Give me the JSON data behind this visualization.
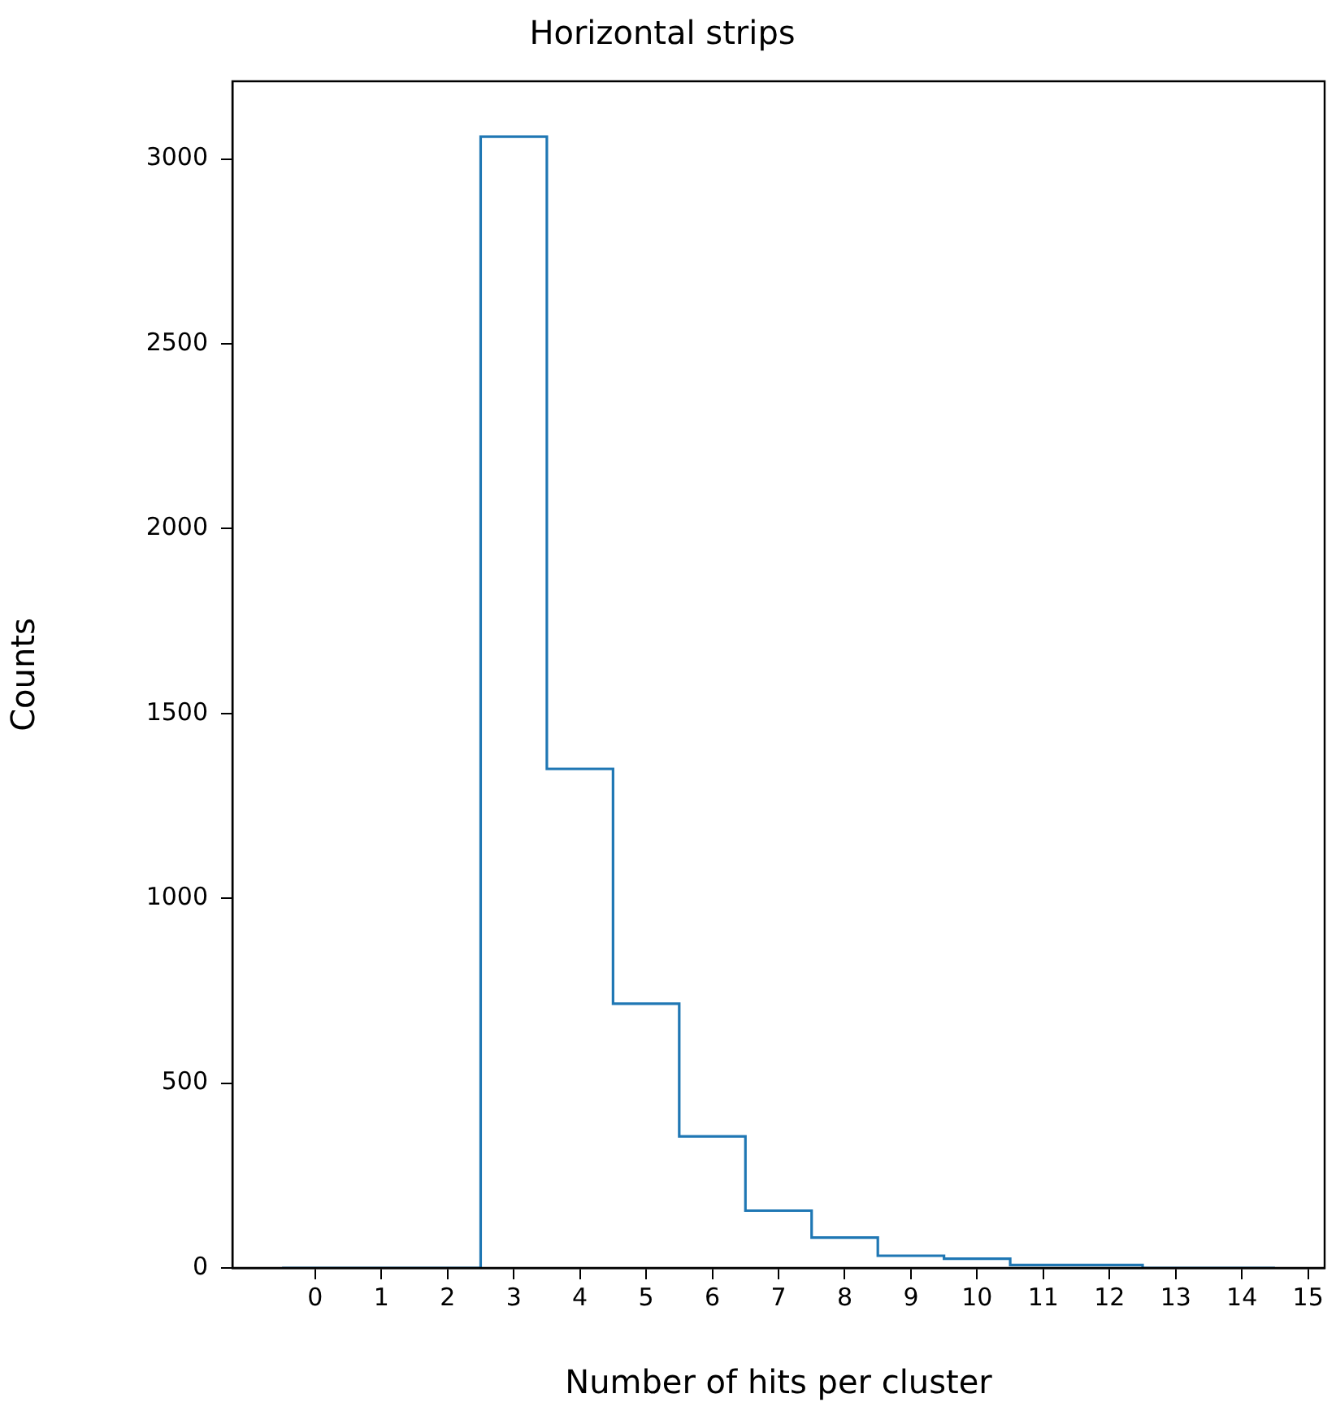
{
  "chart_data": {
    "type": "histogram",
    "title": "Horizontal strips",
    "xlabel": "Number of hits per cluster",
    "ylabel": "Counts",
    "bins": [
      -0.5,
      0.5,
      1.5,
      2.5,
      3.5,
      4.5,
      5.5,
      6.5,
      7.5,
      8.5,
      9.5,
      10.5,
      11.5,
      12.5,
      13.5,
      14.5
    ],
    "values": [
      0,
      0,
      0,
      3060,
      1350,
      715,
      356,
      155,
      82,
      33,
      25,
      8,
      8,
      0,
      0
    ],
    "color": "#1f77b4",
    "xlim": [
      -1.25,
      15.25
    ],
    "xticks": [
      0,
      1,
      2,
      3,
      4,
      5,
      6,
      7,
      8,
      9,
      10,
      11,
      12,
      13,
      14,
      15
    ],
    "ylim": [
      0,
      3210
    ],
    "yticks": [
      0,
      500,
      1000,
      1500,
      2000,
      2500,
      3000
    ],
    "grid": false,
    "legend": false
  }
}
